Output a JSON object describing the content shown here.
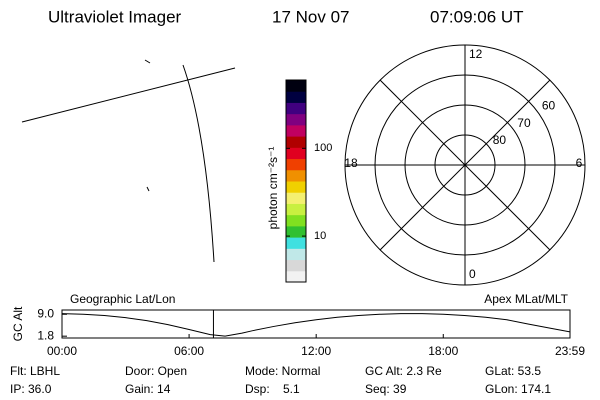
{
  "header": {
    "title": "Ultraviolet Imager",
    "date": "17 Nov 07",
    "time": "07:09:06 UT"
  },
  "colorbar": {
    "label": "photon cm⁻²s⁻¹",
    "scale": "log",
    "lim": [
      3,
      600
    ],
    "ticks": [
      10,
      100
    ],
    "colors": [
      "#f2f2f2",
      "#d8d8d8",
      "#c0e8e8",
      "#40e0e0",
      "#30c030",
      "#80e020",
      "#c8f040",
      "#f4f070",
      "#f0d000",
      "#f09000",
      "#f04000",
      "#e00020",
      "#b00000",
      "#c00060",
      "#800080",
      "#400080",
      "#000040",
      "#000010"
    ]
  },
  "polar": {
    "mlat_lim": [
      90,
      50
    ],
    "rings": [
      80,
      70,
      60
    ],
    "mlt": [
      12,
      6,
      0,
      18
    ]
  },
  "altitude_chart": {
    "type": "line",
    "y_label": "GC Alt",
    "left_label": "Geographic Lat/Lon",
    "right_label": "Apex MLat/MLT",
    "xlim": [
      0,
      23.983
    ],
    "ylim": [
      1.2,
      10.4
    ],
    "xticks": [
      {
        "value": 0,
        "label": "00:00"
      },
      {
        "value": 6,
        "label": "06:00"
      },
      {
        "value": 12,
        "label": "12:00"
      },
      {
        "value": 18,
        "label": "18:00"
      },
      {
        "value": 23.983,
        "label": "23:59"
      }
    ],
    "yticks": [
      {
        "value": 9,
        "label": "9.0"
      },
      1.8
    ],
    "x": [
      0,
      1,
      2,
      3,
      4,
      5,
      6,
      7,
      7.7,
      8.5,
      9,
      10,
      11,
      12,
      13,
      14,
      15,
      16,
      17,
      18,
      19,
      20,
      21,
      22,
      23,
      23.983
    ],
    "values": [
      9.2,
      9.0,
      8.6,
      7.9,
      6.9,
      5.6,
      4.0,
      2.3,
      1.8,
      2.8,
      3.6,
      5.0,
      6.2,
      7.2,
      8.0,
      8.6,
      9.0,
      9.2,
      9.2,
      9.0,
      8.6,
      8.0,
      7.2,
      5.8,
      4.5,
      3.2
    ],
    "color": "#000000",
    "current_time": 7.15,
    "current_color": "#ff0000"
  },
  "info": [
    [
      "Flt: LBHL",
      "Door: Open",
      "Mode: Normal",
      "GC Alt: 2.3 Re",
      "GLat: 53.5"
    ],
    [
      "IP: 36.0",
      "Gain: 14",
      "Dsp:    5.1",
      "Seq: 39",
      "GLon: 174.1"
    ]
  ]
}
